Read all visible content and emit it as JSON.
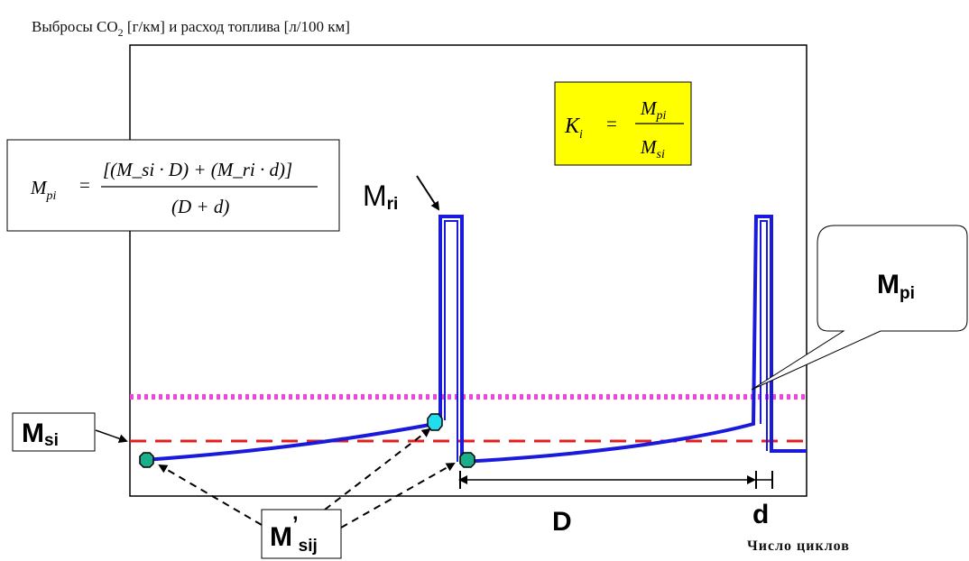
{
  "title": {
    "prefix": "Выбросы CO",
    "sub": "2",
    "suffix": " [г/км] и расход топлива [л/100 км]"
  },
  "x_axis_label": "Число циклов",
  "formula_mpi": {
    "lhs": "M",
    "lhs_sub": "pi",
    "numerator": "[(M_si · D) + (M_ri · d)]",
    "denominator": "(D + d)"
  },
  "formula_ki": {
    "lhs": "K",
    "lhs_sub": "i",
    "numerator": "M",
    "numerator_sub": "pi",
    "denominator": "M",
    "denominator_sub": "si"
  },
  "labels": {
    "m_ri": {
      "main": "M",
      "sub": "ri"
    },
    "m_pi": {
      "main": "M",
      "sub": "pi"
    },
    "m_si": {
      "main": "M",
      "sub": "si"
    },
    "m_sij": {
      "main": "M",
      "prime": "’",
      "sub": "sij"
    },
    "d_big": "D",
    "d_small": "d"
  },
  "colors": {
    "signal": "#1a1adc",
    "trend": "#2e2ed8",
    "mpi_line": "#ee44dd",
    "msi_line": "#e02020",
    "ki_box": "#ffff00",
    "marker_green": "#1aae8a",
    "marker_cyan": "#22ddee"
  }
}
